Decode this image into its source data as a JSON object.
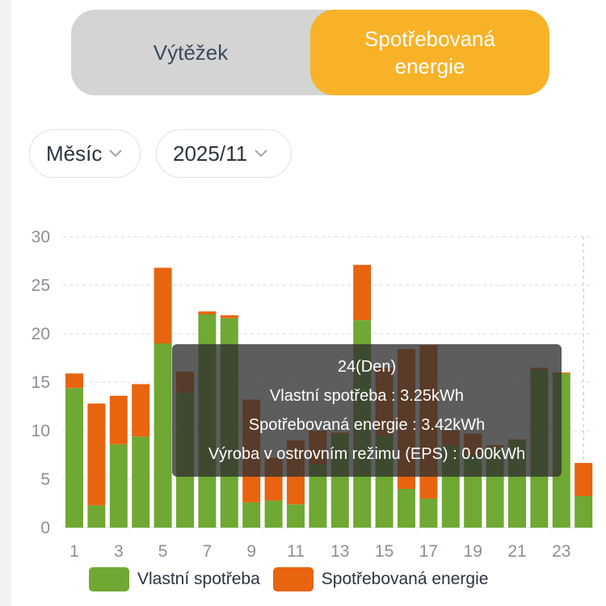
{
  "tabs": {
    "left_label": "Výtěžek",
    "right_label": "Spotřebovaná energie"
  },
  "filters": {
    "period": "Měsíc",
    "date": "2025/11"
  },
  "tooltip": {
    "title": "24(Den)",
    "line1": "Vlastní spotřeba : 3.25kWh",
    "line2": "Spotřebovaná energie : 3.42kWh",
    "line3": "Výroba v ostrovním režimu (EPS) : 0.00kWh"
  },
  "colors": {
    "self": "#6fa832",
    "consumed": "#e8640f",
    "accent": "#f7b228"
  },
  "chart_data": {
    "type": "bar",
    "stacked": true,
    "categories": [
      "1",
      "2",
      "3",
      "4",
      "5",
      "6",
      "7",
      "8",
      "9",
      "10",
      "11",
      "12",
      "13",
      "14",
      "15",
      "16",
      "17",
      "18",
      "19",
      "20",
      "21",
      "22",
      "23",
      "24"
    ],
    "x_tick_labels": [
      "1",
      "3",
      "5",
      "7",
      "9",
      "11",
      "13",
      "15",
      "17",
      "19",
      "21",
      "23"
    ],
    "series": [
      {
        "name": "Vlastní spotřeba",
        "color": "#6fa832",
        "values": [
          14.4,
          2.3,
          8.6,
          9.4,
          19.0,
          13.9,
          22.0,
          21.6,
          2.6,
          2.8,
          2.4,
          6.5,
          9.6,
          21.4,
          9.5,
          4.0,
          3.0,
          8.5,
          7.5,
          8.3,
          9.0,
          16.3,
          15.9,
          3.25
        ]
      },
      {
        "name": "Spotřebovaná energie",
        "color": "#e8640f",
        "values": [
          1.5,
          10.5,
          5.0,
          5.4,
          7.8,
          2.2,
          0.3,
          0.3,
          10.6,
          4.4,
          6.6,
          3.5,
          0.2,
          5.7,
          7.0,
          14.4,
          15.8,
          1.5,
          2.2,
          0.2,
          0.1,
          0.2,
          0.1,
          3.42
        ]
      }
    ],
    "y_ticks": [
      0,
      5,
      10,
      15,
      20,
      25,
      30
    ],
    "ylim": [
      0,
      30
    ],
    "grid": true,
    "legend_position": "bottom",
    "highlighted": "24"
  }
}
